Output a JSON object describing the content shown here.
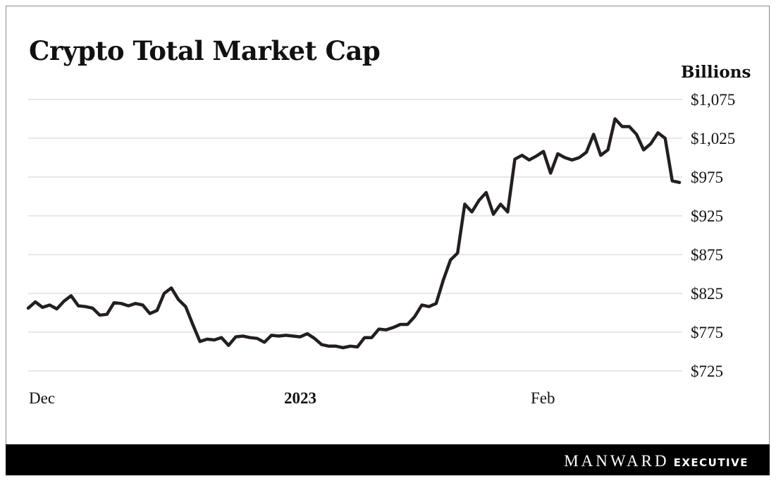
{
  "chart_data": {
    "type": "line",
    "title": "Crypto Total Market Cap",
    "unit_label": "Billions",
    "x_tick_labels": [
      "Dec",
      "2023",
      "Feb"
    ],
    "y_tick_labels": [
      "$1,075",
      "$1,025",
      "$975",
      "$925",
      "$875",
      "$825",
      "$775",
      "$725"
    ],
    "y_ticks": [
      1075,
      1025,
      975,
      925,
      875,
      825,
      775,
      725
    ],
    "ylim": [
      725,
      1080
    ],
    "grid": true,
    "legend": "none",
    "line_color": "#231f20",
    "x": [
      0,
      1,
      2,
      3,
      4,
      5,
      6,
      7,
      8,
      9,
      10,
      11,
      12,
      13,
      14,
      15,
      16,
      17,
      18,
      19,
      20,
      21,
      22,
      23,
      24,
      25,
      26,
      27,
      28,
      29,
      30,
      31,
      32,
      33,
      34,
      35,
      36,
      37,
      38,
      39,
      40,
      41,
      42,
      43,
      44,
      45,
      46,
      47,
      48,
      49,
      50,
      51,
      52,
      53,
      54,
      55,
      56,
      57,
      58,
      59,
      60,
      61,
      62,
      63,
      64,
      65,
      66,
      67,
      68,
      69,
      70,
      71,
      72,
      73,
      74,
      75,
      76,
      77,
      78,
      79,
      80,
      81,
      82,
      83,
      84,
      85,
      86,
      87,
      88,
      89,
      90,
      91
    ],
    "values": [
      806,
      814,
      807,
      810,
      805,
      815,
      822,
      809,
      808,
      806,
      797,
      798,
      813,
      812,
      809,
      812,
      810,
      799,
      803,
      825,
      832,
      817,
      808,
      785,
      763,
      766,
      765,
      768,
      758,
      769,
      770,
      768,
      767,
      762,
      771,
      770,
      771,
      770,
      769,
      773,
      767,
      759,
      757,
      757,
      755,
      757,
      756,
      768,
      768,
      779,
      778,
      781,
      785,
      785,
      795,
      810,
      808,
      812,
      842,
      868,
      877,
      940,
      930,
      945,
      955,
      927,
      940,
      930,
      998,
      1003,
      997,
      1002,
      1008,
      980,
      1005,
      1000,
      997,
      1000,
      1007,
      1030,
      1003,
      1010,
      1050,
      1040,
      1040,
      1030,
      1010,
      1018,
      1032,
      1025,
      970,
      968
    ]
  },
  "footer": {
    "brand": "MANWARD",
    "brand_sub": "EXECUTIVE"
  }
}
